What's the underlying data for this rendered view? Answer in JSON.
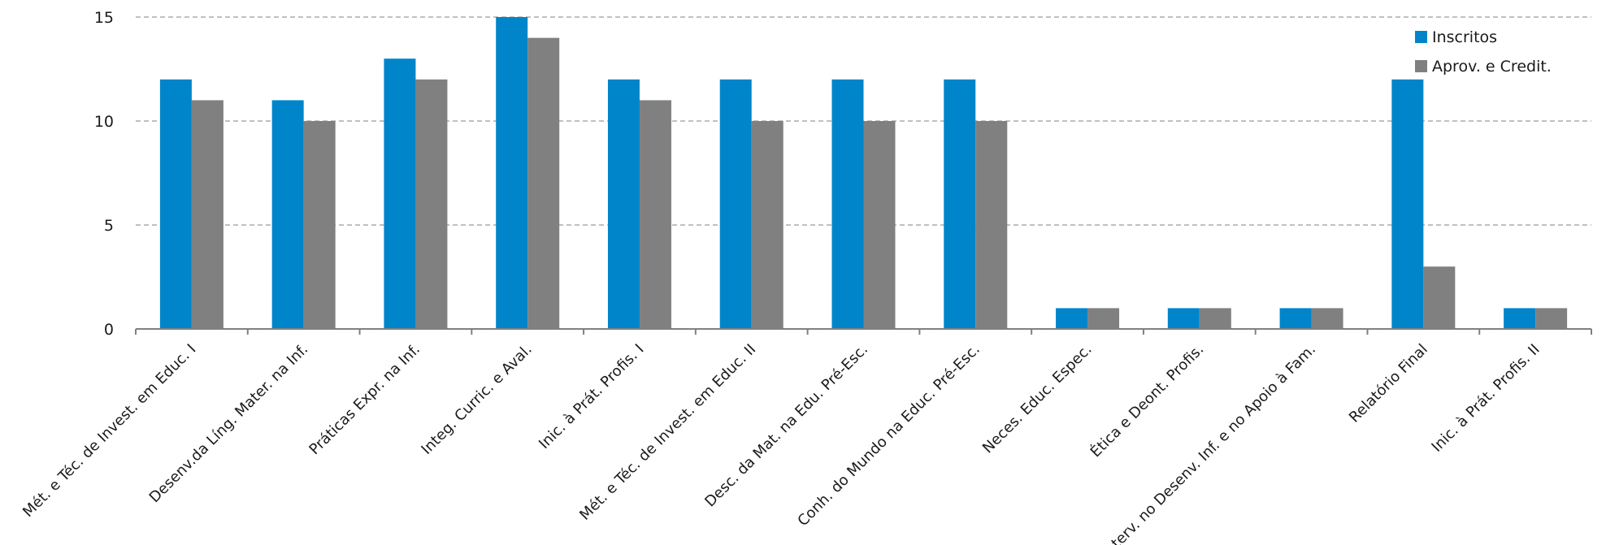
{
  "chart_data": {
    "type": "bar",
    "title": "",
    "xlabel": "",
    "ylabel": "",
    "ylim": [
      0,
      15
    ],
    "yticks": [
      0,
      5,
      10,
      15
    ],
    "grid": true,
    "legend_position": "top-right",
    "categories": [
      "Mét. e Téc. de Invest. em Educ. I",
      "Desenv.da Líng. Mater. na Inf.",
      "Práticas Expr. na Inf.",
      "Integ. Curric. e Aval.",
      "Inic. à Prát. Profis. I",
      "Mét. e Téc. de Invest. em Educ. II",
      "Desc. da Mat. na Edu. Pré-Esc.",
      "Conh. do Mundo na Educ. Pré-Esc.",
      "Neces. Educ. Espec.",
      "Ética e Deont. Profis.",
      "Interv. no Desenv. Inf. e no Apoio à Fam.",
      "Relatório Final",
      "Inic. à Prát. Profis. II"
    ],
    "series": [
      {
        "name": "Inscritos",
        "color": "#0085CA",
        "values": [
          12,
          11,
          13,
          15,
          12,
          12,
          12,
          12,
          1,
          1,
          1,
          12,
          1
        ]
      },
      {
        "name": "Aprov. e Credit.",
        "color": "#808080",
        "values": [
          11,
          10,
          12,
          14,
          11,
          10,
          10,
          10,
          1,
          1,
          1,
          3,
          1
        ]
      }
    ]
  }
}
